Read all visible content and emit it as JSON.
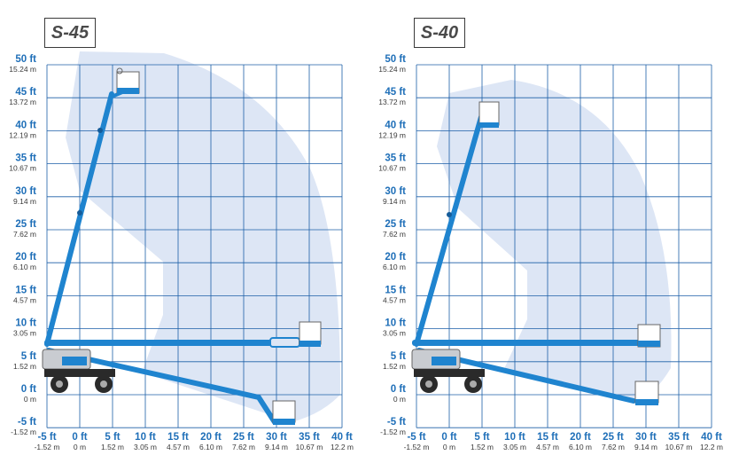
{
  "colors": {
    "grid": "#1c5fa8",
    "envelope": "#dde6f5",
    "boom": "#1f84cf",
    "ft_label": "#1f6fb8",
    "m_label": "#3a3a3a"
  },
  "y_ticks": [
    {
      "ft": "50 ft",
      "m": "15.24 m"
    },
    {
      "ft": "45 ft",
      "m": "13.72 m"
    },
    {
      "ft": "40 ft",
      "m": "12.19 m"
    },
    {
      "ft": "35 ft",
      "m": "10.67 m"
    },
    {
      "ft": "30 ft",
      "m": "9.14 m"
    },
    {
      "ft": "25 ft",
      "m": "7.62 m"
    },
    {
      "ft": "20 ft",
      "m": "6.10 m"
    },
    {
      "ft": "15 ft",
      "m": "4.57 m"
    },
    {
      "ft": "10 ft",
      "m": "3.05 m"
    },
    {
      "ft": "5 ft",
      "m": "1.52 m"
    },
    {
      "ft": "0 ft",
      "m": "0 m"
    },
    {
      "ft": "-5 ft",
      "m": "-1.52 m"
    }
  ],
  "x_ticks": [
    {
      "ft": "-5 ft",
      "m": "-1.52 m"
    },
    {
      "ft": "0 ft",
      "m": "0 m"
    },
    {
      "ft": "5 ft",
      "m": "1.52 m"
    },
    {
      "ft": "10 ft",
      "m": "3.05 m"
    },
    {
      "ft": "15 ft",
      "m": "4.57 m"
    },
    {
      "ft": "20 ft",
      "m": "6.10 m"
    },
    {
      "ft": "25 ft",
      "m": "7.62 m"
    },
    {
      "ft": "30 ft",
      "m": "9.14 m"
    },
    {
      "ft": "35 ft",
      "m": "10.67 m"
    },
    {
      "ft": "40 ft",
      "m": "12.2 m"
    }
  ],
  "panels": [
    {
      "title": "S-45"
    },
    {
      "title": "S-40"
    }
  ]
}
